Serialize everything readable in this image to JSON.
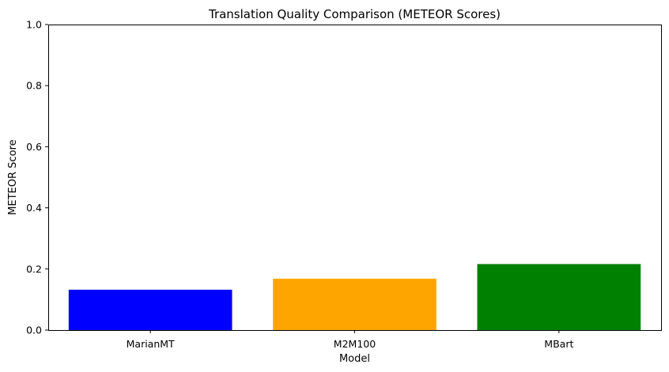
{
  "chart_data": {
    "type": "bar",
    "title": "Translation Quality Comparison (METEOR Scores)",
    "xlabel": "Model",
    "ylabel": "METEOR Score",
    "categories": [
      "MarianMT",
      "M2M100",
      "MBart"
    ],
    "values": [
      0.132,
      0.168,
      0.216
    ],
    "colors": [
      "#0000ff",
      "#ffa500",
      "#008000"
    ],
    "ylim": [
      0,
      1.0
    ],
    "yticks": [
      "0.0",
      "0.2",
      "0.4",
      "0.6",
      "0.8",
      "1.0"
    ],
    "grid": false,
    "legend": "none"
  }
}
